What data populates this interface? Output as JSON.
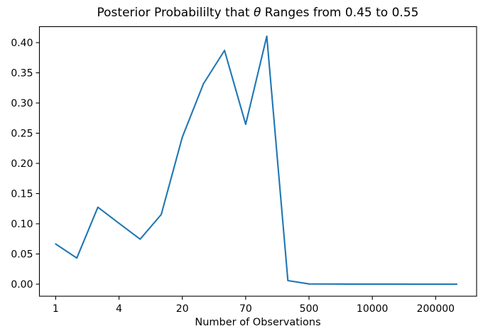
{
  "figure": {
    "background": "#ffffff",
    "title": {
      "prefix": "Posterior Probabililty that ",
      "theta": "θ",
      "suffix": " Ranges from 0.45 to 0.55"
    }
  },
  "chart_data": {
    "type": "line",
    "title": "Posterior Probabililty that θ Ranges from 0.45 to 0.55",
    "xlabel": "Number of Observations",
    "ylabel": "",
    "x": [
      0,
      1,
      2,
      3,
      4,
      5,
      6,
      7,
      8,
      9,
      10,
      11,
      12,
      13,
      14,
      15,
      16,
      17,
      18,
      19
    ],
    "values": [
      0.0665,
      0.0432,
      0.1274,
      0.1008,
      0.0745,
      0.1153,
      0.2435,
      0.3318,
      0.3871,
      0.2647,
      0.4106,
      0.0059,
      0.0004,
      0.0002,
      0.0001,
      0.0001,
      0.0001,
      0.0,
      0.0,
      0.0
    ],
    "x_tick_positions": [
      0,
      3,
      6,
      9,
      12,
      15,
      18
    ],
    "x_tick_labels": [
      "1",
      "4",
      "20",
      "70",
      "500",
      "10000",
      "200000"
    ],
    "y_tick_values": [
      0.0,
      0.05,
      0.1,
      0.15,
      0.2,
      0.25,
      0.3,
      0.35,
      0.4
    ],
    "y_tick_labels": [
      "0.00",
      "0.05",
      "0.10",
      "0.15",
      "0.20",
      "0.25",
      "0.30",
      "0.35",
      "0.40"
    ],
    "xlim": [
      -0.77,
      19.94
    ],
    "ylim": [
      -0.02,
      0.4265
    ],
    "line_color": "#1f77b4",
    "axis_color": "#000000",
    "grid": false,
    "legend": null
  }
}
